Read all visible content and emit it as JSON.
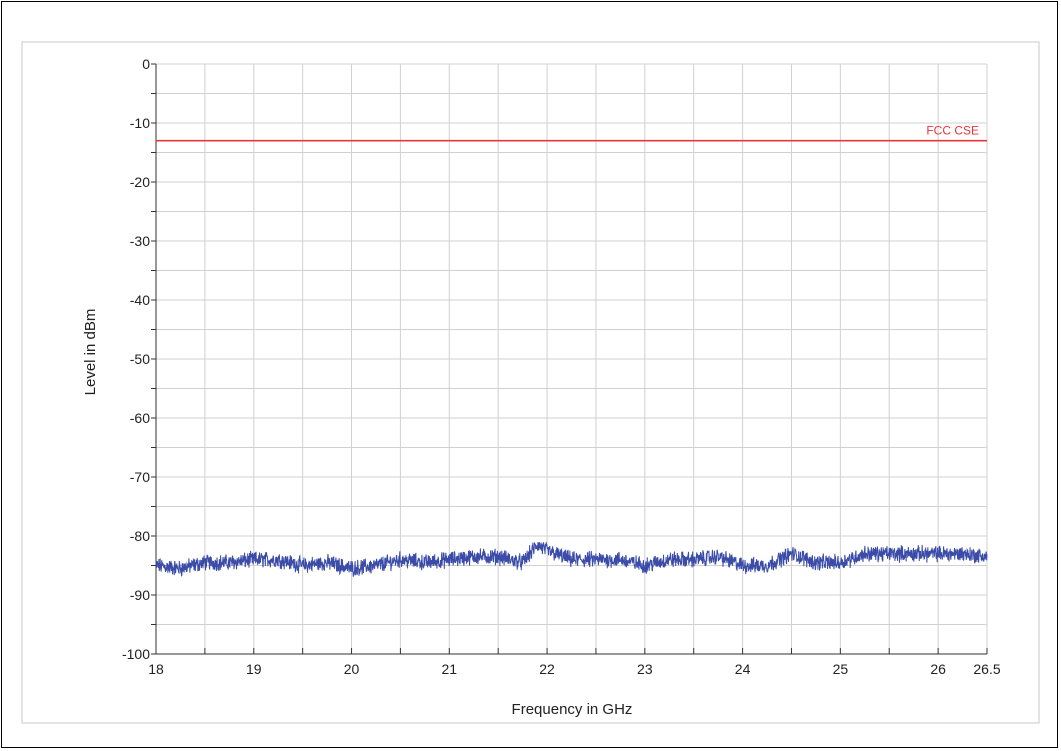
{
  "chart_data": {
    "type": "line",
    "xlabel": "Frequency in GHz",
    "ylabel": "Level in dBm",
    "xlim": [
      18,
      26.5
    ],
    "ylim": [
      -100,
      0
    ],
    "x_ticks": [
      18,
      19,
      20,
      21,
      22,
      23,
      24,
      25,
      26,
      26.5
    ],
    "x_tick_labels": [
      "18",
      "19",
      "20",
      "21",
      "22",
      "23",
      "24",
      "25",
      "26",
      "26.5"
    ],
    "y_ticks": [
      0,
      -10,
      -20,
      -30,
      -40,
      -50,
      -60,
      -70,
      -80,
      -90,
      -100
    ],
    "y_tick_labels": [
      "0",
      "-10",
      "-20",
      "-30",
      "-40",
      "-50",
      "-60",
      "-70",
      "-80",
      "-90",
      "-100"
    ],
    "grid": true,
    "limit_line": {
      "name": "FCC CSE",
      "y": -13,
      "color": "#e8363c"
    },
    "series": [
      {
        "color": "#3a4ba8",
        "x": [
          18.0,
          18.25,
          18.5,
          18.75,
          19.0,
          19.25,
          19.5,
          19.75,
          20.0,
          20.25,
          20.5,
          20.75,
          21.0,
          21.25,
          21.5,
          21.75,
          21.9,
          22.0,
          22.25,
          22.5,
          22.75,
          23.0,
          23.25,
          23.5,
          23.75,
          24.0,
          24.25,
          24.5,
          24.75,
          25.0,
          25.25,
          25.5,
          25.75,
          26.0,
          26.25,
          26.5
        ],
        "values": [
          -85,
          -85.5,
          -84.5,
          -84.5,
          -84,
          -84,
          -85,
          -84.5,
          -85.5,
          -85,
          -84,
          -84.5,
          -84,
          -83.5,
          -83.5,
          -84.5,
          -81.5,
          -82.5,
          -84,
          -84,
          -84,
          -85,
          -84,
          -84,
          -83.5,
          -85,
          -85,
          -83,
          -84.5,
          -84.5,
          -83,
          -83,
          -83,
          -83,
          -83,
          -83.5
        ]
      }
    ]
  }
}
